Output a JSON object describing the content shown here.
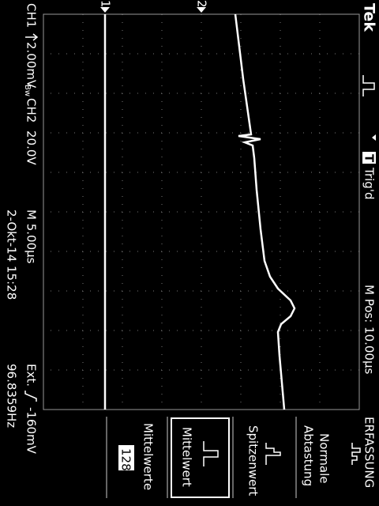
{
  "header": {
    "brand": "Tek",
    "trigger_letter": "T",
    "trigger_status": "Trig'd",
    "position": "M Pos: 10.00µs"
  },
  "menu": {
    "title": "ERFASSUNG",
    "options": [
      [
        "Normale",
        "Abtastung"
      ],
      [
        "Spitzenwert"
      ],
      [
        "Mittelwert"
      ],
      [
        "Mittelwerte",
        "128"
      ]
    ]
  },
  "markers": [
    "1",
    "2"
  ],
  "status": {
    "ch1_label": "CH1",
    "ch1_scale": "2.00mV",
    "bandwidth": "Bw",
    "ch2_label": "CH2",
    "ch2_scale": "20.0V",
    "timebase": "M 5.00µs",
    "trigger_source": "Ext.",
    "trigger_level": "-160mV",
    "datetime": "2-Okt-14 15:28",
    "frequency": "96.8359Hz"
  }
}
